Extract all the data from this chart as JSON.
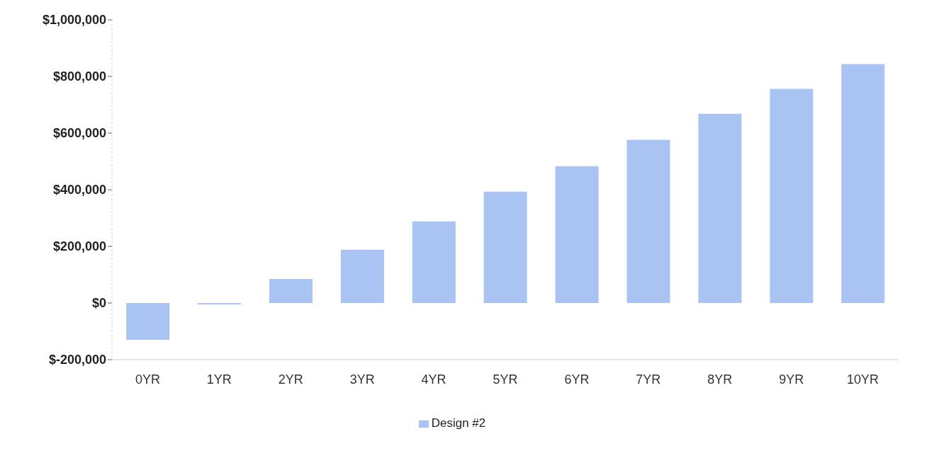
{
  "chart_data": {
    "type": "bar",
    "categories": [
      "0YR",
      "1YR",
      "2YR",
      "3YR",
      "4YR",
      "5YR",
      "6YR",
      "7YR",
      "8YR",
      "9YR",
      "10YR"
    ],
    "series": [
      {
        "name": "Design #2",
        "color": "#a9c4f2",
        "values": [
          -130000,
          -5000,
          85000,
          188000,
          288000,
          393000,
          483000,
          576000,
          668000,
          756000,
          844000
        ]
      }
    ],
    "ylim": [
      -200000,
      1000000
    ],
    "yticks": [
      {
        "value": -200000,
        "label": "$-200,000"
      },
      {
        "value": 0,
        "label": "$0"
      },
      {
        "value": 200000,
        "label": "$200,000"
      },
      {
        "value": 400000,
        "label": "$400,000"
      },
      {
        "value": 600000,
        "label": "$600,000"
      },
      {
        "value": 800000,
        "label": "$800,000"
      },
      {
        "value": 1000000,
        "label": "$1,000,000"
      }
    ],
    "grid": false,
    "legend": "bottom"
  }
}
